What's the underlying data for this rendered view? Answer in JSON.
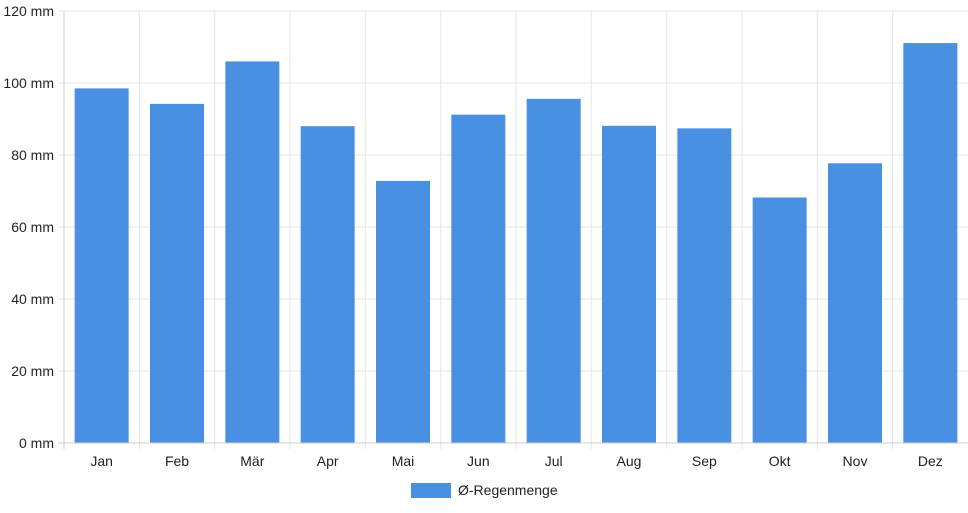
{
  "chart_data": {
    "type": "bar",
    "categories": [
      "Jan",
      "Feb",
      "Mär",
      "Apr",
      "Mai",
      "Jun",
      "Jul",
      "Aug",
      "Sep",
      "Okt",
      "Nov",
      "Dez"
    ],
    "series": [
      {
        "name": "Ø-Regenmenge",
        "values": [
          98.5,
          94.2,
          106.0,
          88.0,
          72.8,
          91.2,
          95.6,
          88.1,
          87.4,
          68.2,
          77.7,
          111.1
        ],
        "color": "#4a90e2"
      }
    ],
    "yticks": [
      "0 mm",
      "20 mm",
      "40 mm",
      "60 mm",
      "80 mm",
      "100 mm",
      "120 mm"
    ],
    "ylim": [
      0,
      120
    ],
    "grid": true,
    "legend_position": "bottom"
  }
}
